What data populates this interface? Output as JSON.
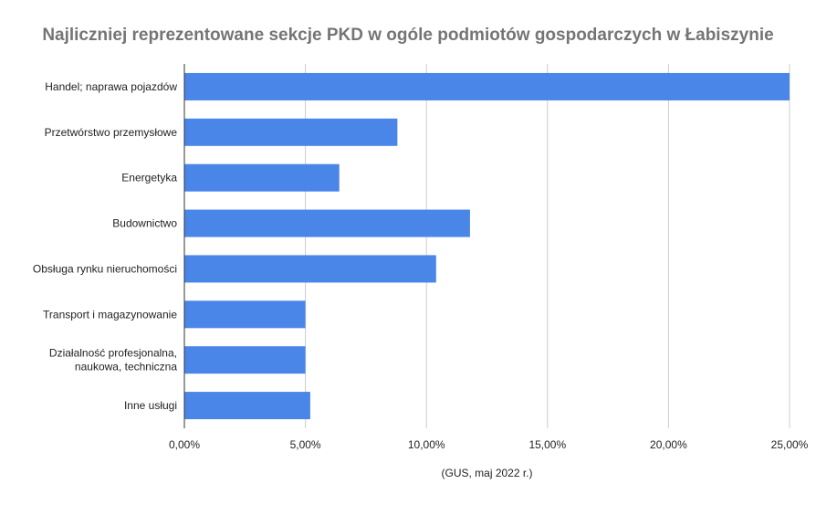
{
  "chart_data": {
    "type": "bar",
    "orientation": "horizontal",
    "title": "Najliczniej reprezentowane sekcje PKD w ogóle podmiotów gospodarczych w Łabiszynie",
    "categories": [
      [
        "Handel; naprawa pojazdów"
      ],
      [
        "Przetwórstwo przemysłowe"
      ],
      [
        "Energetyka"
      ],
      [
        "Budownictwo"
      ],
      [
        "Obsługa rynku nieruchomości"
      ],
      [
        "Transport i magazynowanie"
      ],
      [
        "Działalność profesjonalna,",
        "naukowa, techniczna"
      ],
      [
        "Inne usługi"
      ]
    ],
    "values": [
      0.25,
      0.088,
      0.064,
      0.118,
      0.104,
      0.05,
      0.05,
      0.052
    ],
    "xlabel": "(GUS, maj 2022 r.)",
    "ylabel": "",
    "xlim": [
      0,
      0.25
    ],
    "x_ticks": [
      "0,00%",
      "5,00%",
      "10,00%",
      "15,00%",
      "20,00%",
      "25,00%"
    ],
    "x_tick_values": [
      0,
      0.05,
      0.1,
      0.15,
      0.2,
      0.25
    ],
    "grid": "vertical",
    "legend": "none",
    "bar_color": "#4a86e8",
    "grid_color": "#cccccc",
    "axis_color": "#333333"
  }
}
